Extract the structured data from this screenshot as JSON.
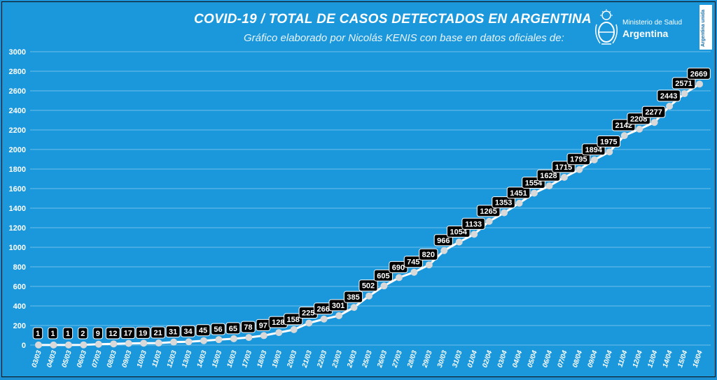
{
  "header": {
    "title": "COVID-19  /  TOTAL DE CASOS DETECTADOS EN ARGENTINA",
    "subtitle": "Gráfico elaborado por Nicolás KENIS con base en datos oficiales de:"
  },
  "logo": {
    "line1": "Ministerio de Salud",
    "line2": "Argentina",
    "icon": "argentina-coat-of-arms-icon"
  },
  "badge": {
    "text": "Argentina unida"
  },
  "colors": {
    "background": "#1b98dc",
    "line": "#ffffff",
    "marker": "#d9d9d9",
    "label_bg": "#000000",
    "label_text": "#ffffff",
    "grid": "#6fc1ea"
  },
  "chart_data": {
    "type": "line",
    "ylim": [
      0,
      3000
    ],
    "yticks": [
      0,
      200,
      400,
      600,
      800,
      1000,
      1200,
      1400,
      1600,
      1800,
      2000,
      2200,
      2400,
      2600,
      2800,
      3000
    ],
    "grid": true,
    "categories": [
      "03/03",
      "04/03",
      "05/03",
      "06/03",
      "07/03",
      "08/03",
      "09/03",
      "10/03",
      "11/03",
      "12/03",
      "13/03",
      "14/03",
      "15/03",
      "16/03",
      "17/03",
      "18/03",
      "19/03",
      "20/03",
      "21/03",
      "22/03",
      "23/03",
      "24/03",
      "25/03",
      "26/03",
      "27/03",
      "28/03",
      "29/03",
      "30/03",
      "31/03",
      "01/04",
      "02/04",
      "03/04",
      "04/04",
      "05/04",
      "06/04",
      "07/04",
      "08/04",
      "09/04",
      "10/04",
      "11/04",
      "12/04",
      "13/04",
      "14/04",
      "15/04",
      "16/04"
    ],
    "values": [
      1,
      1,
      1,
      2,
      9,
      12,
      17,
      19,
      21,
      31,
      34,
      45,
      56,
      65,
      78,
      97,
      128,
      158,
      225,
      266,
      301,
      385,
      502,
      605,
      690,
      745,
      820,
      966,
      1054,
      1133,
      1265,
      1353,
      1451,
      1554,
      1628,
      1715,
      1795,
      1894,
      1975,
      2142,
      2208,
      2277,
      2443,
      2571,
      2669
    ]
  }
}
